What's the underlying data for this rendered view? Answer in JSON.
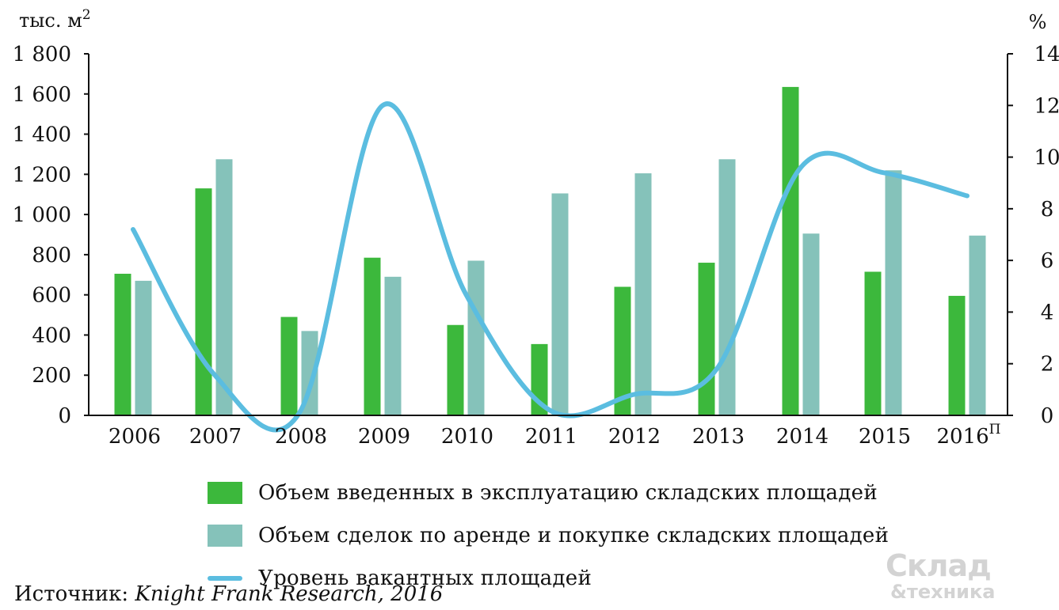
{
  "chart_data": {
    "type": "bar",
    "y_left_unit": "тыс. м",
    "y_left_unit_sup": "2",
    "y_right_unit": "%",
    "categories": [
      {
        "label": "2006",
        "sup": ""
      },
      {
        "label": "2007",
        "sup": ""
      },
      {
        "label": "2008",
        "sup": ""
      },
      {
        "label": "2009",
        "sup": ""
      },
      {
        "label": "2010",
        "sup": ""
      },
      {
        "label": "2011",
        "sup": ""
      },
      {
        "label": "2012",
        "sup": ""
      },
      {
        "label": "2013",
        "sup": ""
      },
      {
        "label": "2014",
        "sup": ""
      },
      {
        "label": "2015",
        "sup": ""
      },
      {
        "label": "2016",
        "sup": "П"
      }
    ],
    "ylim_left": [
      0,
      1800
    ],
    "y_left_ticks": [
      "0",
      "200",
      "400",
      "600",
      "800",
      "1 000",
      "1 200",
      "1 400",
      "1 600",
      "1 800"
    ],
    "ylim_right": [
      0,
      14
    ],
    "y_right_ticks": [
      "0",
      "2",
      "4",
      "6",
      "8",
      "10",
      "12",
      "14"
    ],
    "series": [
      {
        "name": "Объем введенных в эксплуатацию складских площадей",
        "type": "bar",
        "axis": "left",
        "color": "#3cb83c",
        "values": [
          705,
          1130,
          490,
          785,
          450,
          355,
          640,
          760,
          1635,
          715,
          595
        ]
      },
      {
        "name": "Объем сделок по аренде и покупке складских площадей",
        "type": "bar",
        "axis": "left",
        "color": "#85c2ba",
        "values": [
          670,
          1275,
          420,
          690,
          770,
          1105,
          1205,
          1275,
          905,
          1220,
          895
        ]
      },
      {
        "name": "Уровень вакантных площадей",
        "type": "line",
        "axis": "right",
        "color": "#5bbde0",
        "values": [
          7.2,
          1.6,
          0.1,
          12.0,
          4.7,
          0.2,
          0.8,
          1.8,
          9.6,
          9.4,
          8.5
        ]
      }
    ]
  },
  "source": {
    "prefix": "Источник: ",
    "text": "Knight Frank Research, 2016"
  },
  "watermark": {
    "line1": "Склад",
    "line2": "&техника"
  }
}
